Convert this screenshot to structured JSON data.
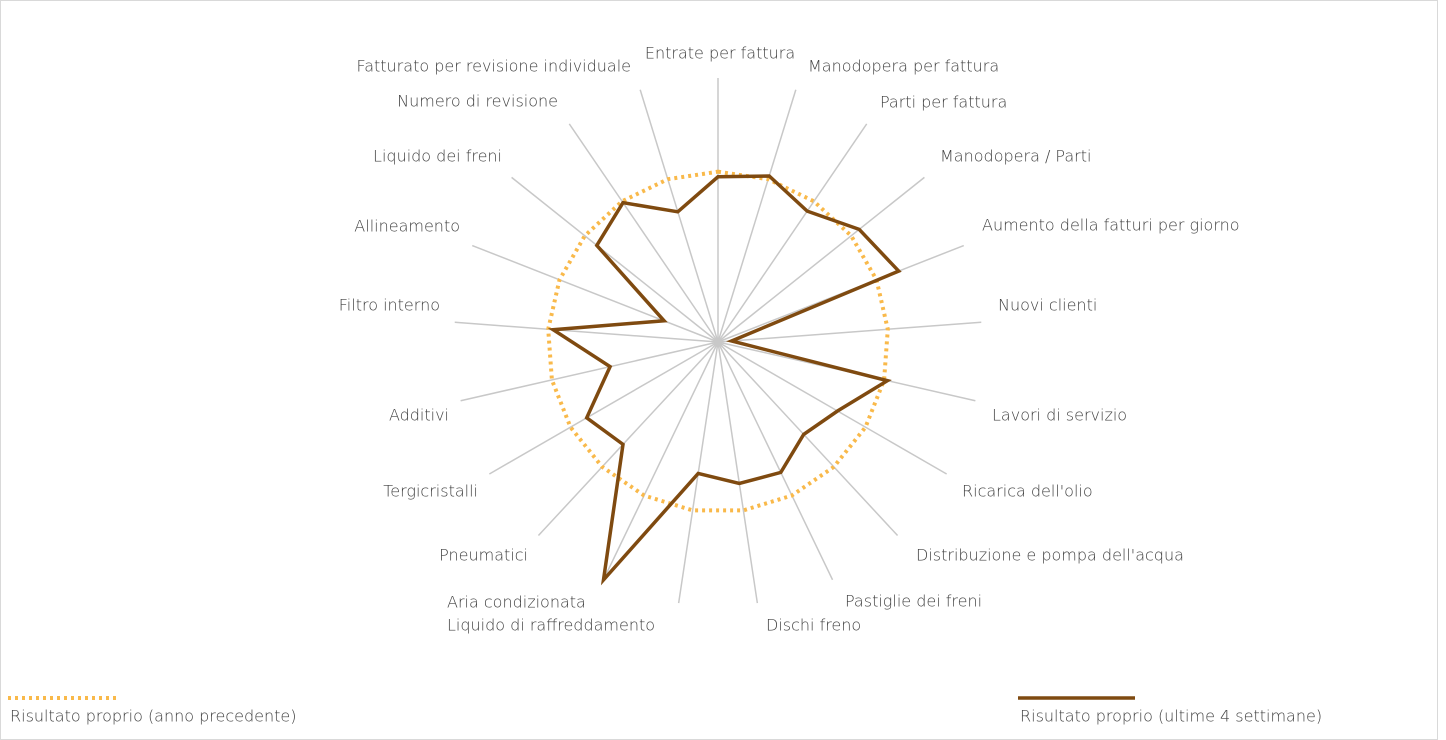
{
  "chart_data": {
    "type": "radar",
    "categories": [
      "Entrate per fattura",
      "Manodopera per fattura",
      "Parti per fattura",
      "Manodopera / Parti",
      "Aumento della fatturi per giorno",
      "Nuovi clienti",
      "Lavori di servizio",
      "Ricarica dell'olio",
      "Distribuzione e pompa dell'acqua",
      "Pastiglie dei freni",
      "Dischi freno",
      "Liquido di raffreddamento",
      "Aria condizionata",
      "Pneumatici",
      "Tergicristalli",
      "Additivi",
      "Filtro interno",
      "Allineamento",
      "Liquido dei freni",
      "Numero di revisione",
      "Fatturato per revisione individuale"
    ],
    "ylim": [
      0,
      155
    ],
    "series": [
      {
        "name": "Risultato proprio (anno precedente)",
        "color": "#f9b94a",
        "line_style": "dotted",
        "values": [
          100,
          100,
          100,
          100,
          100,
          100,
          100,
          100,
          100,
          100,
          100,
          100,
          100,
          100,
          100,
          100,
          100,
          100,
          100,
          100,
          100
        ]
      },
      {
        "name": "Risultato proprio (ultime 4 settimane)",
        "color": "#7f4a10",
        "line_style": "solid",
        "values": [
          97,
          102,
          93,
          106,
          114,
          8,
          102,
          81,
          74,
          85,
          84,
          78,
          155,
          82,
          89,
          65,
          97,
          34,
          91,
          99,
          80
        ]
      }
    ]
  }
}
